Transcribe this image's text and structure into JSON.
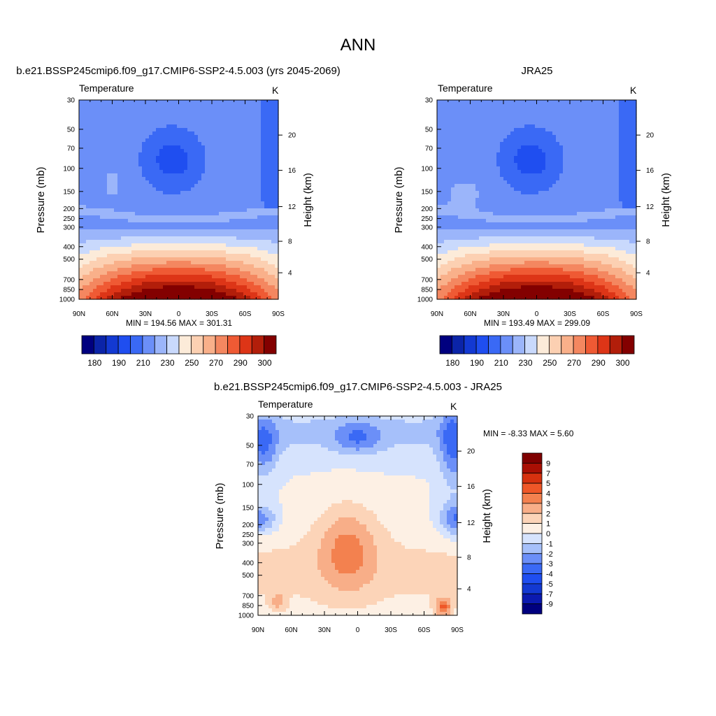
{
  "page": {
    "title": "ANN"
  },
  "palettes": {
    "abs": [
      "#00007f",
      "#0b24a8",
      "#1339d2",
      "#1f4ef0",
      "#3a69f5",
      "#6b8ff8",
      "#9bb5fa",
      "#c9d9fc",
      "#fcebd9",
      "#fcd0b2",
      "#f9b08a",
      "#f48760",
      "#ef5a34",
      "#dd3517",
      "#b21e0a",
      "#830000"
    ],
    "diff": [
      "#00007f",
      "#0b1ab0",
      "#1339d2",
      "#1f4ef0",
      "#3a69f5",
      "#6b8ff8",
      "#a6c0fa",
      "#d6e3fd",
      "#fdf0e4",
      "#fcd4b8",
      "#f8ae88",
      "#f3814f",
      "#ef5728",
      "#d6310f",
      "#a90f04",
      "#7f0000"
    ]
  },
  "panels": [
    {
      "id": "model",
      "title": "b.e21.BSSP245cmip6.f09_g17.CMIP6-SSP2-4.5.003 (yrs 2045-2069)",
      "left_label": "Temperature",
      "right_label": "K",
      "ylabel": "Pressure (mb)",
      "ylabel_right": "Height (km)",
      "minmax": "MIN = 194.56  MAX = 301.31",
      "colorbar_labels": [
        "180",
        "190",
        "210",
        "230",
        "250",
        "270",
        "290",
        "300"
      ]
    },
    {
      "id": "obs",
      "title": "JRA25",
      "left_label": "Temperature",
      "right_label": "K",
      "ylabel": "Pressure (mb)",
      "ylabel_right": "Height (km)",
      "minmax": "MIN = 193.49  MAX = 299.09",
      "colorbar_labels": [
        "180",
        "190",
        "210",
        "230",
        "250",
        "270",
        "290",
        "300"
      ]
    },
    {
      "id": "diff",
      "title": "b.e21.BSSP245cmip6.f09_g17.CMIP6-SSP2-4.5.003 - JRA25",
      "left_label": "Temperature",
      "right_label": "K",
      "ylabel": "Pressure (mb)",
      "ylabel_right": "Height (km)",
      "minmax": "MIN =  -8.33  MAX =   5.60",
      "colorbar_labels": [
        "9",
        "7",
        "5",
        "4",
        "3",
        "2",
        "1",
        "0",
        "-1",
        "-2",
        "-3",
        "-4",
        "-5",
        "-7",
        "-9"
      ]
    }
  ],
  "chart_data": [
    {
      "type": "heatmap",
      "panel": "model",
      "title": "b.e21.BSSP245cmip6.f09_g17.CMIP6-SSP2-4.5.003 (yrs 2045-2069)",
      "xlabel": "",
      "ylabel": "Pressure (mb)",
      "y2label": "Height (km)",
      "x_ticks": [
        "90N",
        "60N",
        "30N",
        "0",
        "30S",
        "60S",
        "90S"
      ],
      "y_ticks": [
        "30",
        "50",
        "70",
        "100",
        "150",
        "200",
        "250",
        "300",
        "400",
        "500",
        "700",
        "850",
        "1000"
      ],
      "y2_ticks": [
        "20",
        "16",
        "12",
        "8",
        "4"
      ],
      "levels": [
        180,
        190,
        200,
        210,
        220,
        230,
        240,
        250,
        260,
        270,
        280,
        290,
        300
      ],
      "min": 194.56,
      "max": 301.31,
      "units": "K"
    },
    {
      "type": "heatmap",
      "panel": "obs",
      "title": "JRA25",
      "xlabel": "",
      "ylabel": "Pressure (mb)",
      "y2label": "Height (km)",
      "x_ticks": [
        "90N",
        "60N",
        "30N",
        "0",
        "30S",
        "60S",
        "90S"
      ],
      "y_ticks": [
        "30",
        "50",
        "70",
        "100",
        "150",
        "200",
        "250",
        "300",
        "400",
        "500",
        "700",
        "850",
        "1000"
      ],
      "y2_ticks": [
        "20",
        "16",
        "12",
        "8",
        "4"
      ],
      "levels": [
        180,
        190,
        200,
        210,
        220,
        230,
        240,
        250,
        260,
        270,
        280,
        290,
        300
      ],
      "min": 193.49,
      "max": 299.09,
      "units": "K"
    },
    {
      "type": "heatmap",
      "panel": "diff",
      "title": "b.e21.BSSP245cmip6.f09_g17.CMIP6-SSP2-4.5.003 - JRA25",
      "xlabel": "",
      "ylabel": "Pressure (mb)",
      "y2label": "Height (km)",
      "x_ticks": [
        "90N",
        "60N",
        "30N",
        "0",
        "30S",
        "60S",
        "90S"
      ],
      "y_ticks": [
        "30",
        "50",
        "70",
        "100",
        "150",
        "200",
        "250",
        "300",
        "400",
        "500",
        "700",
        "850",
        "1000"
      ],
      "y2_ticks": [
        "20",
        "16",
        "12",
        "8",
        "4"
      ],
      "levels": [
        -9,
        -7,
        -5,
        -4,
        -3,
        -2,
        -1,
        0,
        1,
        2,
        3,
        4,
        5,
        7,
        9
      ],
      "min": -8.33,
      "max": 5.6,
      "units": "K"
    }
  ]
}
